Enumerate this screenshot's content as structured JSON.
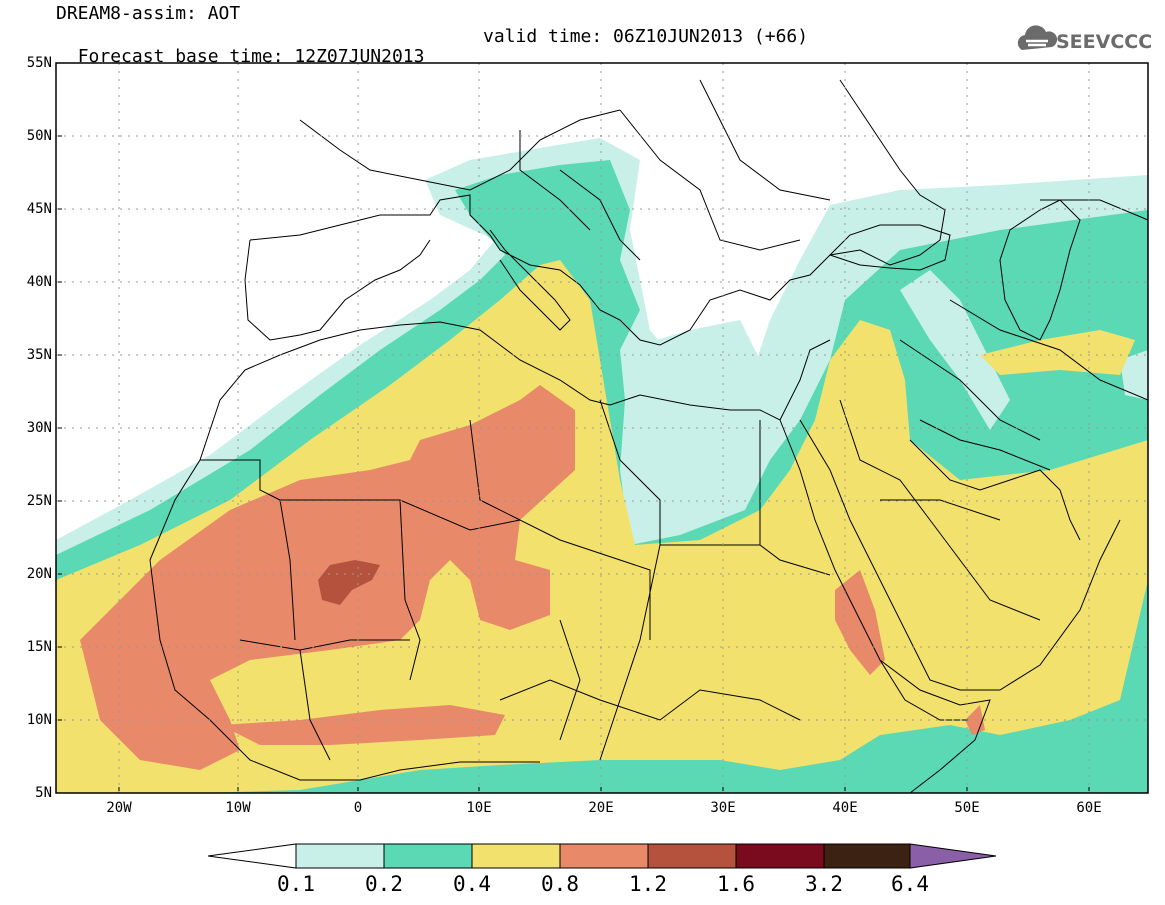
{
  "header": {
    "line1": "DREAM8-assim: AOT",
    "line2a": "Forecast base time: 12Z07JUN2013",
    "line2b": "valid time: 06Z10JUN2013 (+66)"
  },
  "logo": {
    "text": "SEEVCCC",
    "icon": "cloud-icon",
    "color": "#6b6b6b"
  },
  "map": {
    "lat_labels": [
      "55N",
      "50N",
      "45N",
      "40N",
      "35N",
      "30N",
      "25N",
      "20N",
      "15N",
      "10N",
      "5N"
    ],
    "lon_labels": [
      "20W",
      "10W",
      "0",
      "10E",
      "20E",
      "30E",
      "40E",
      "50E",
      "60E"
    ]
  },
  "colorbar": {
    "labels": [
      "0.1",
      "0.2",
      "0.4",
      "0.8",
      "1.2",
      "1.6",
      "3.2",
      "6.4"
    ],
    "colors": [
      "#ffffff",
      "#c8f0e8",
      "#5ad9b4",
      "#f3e16e",
      "#e8896a",
      "#b5523e",
      "#7a0a1e",
      "#3c2212",
      "#8a5fa8"
    ]
  },
  "colors": {
    "c1": "#c8f0e8",
    "c2": "#5ad9b4",
    "c3": "#f3e16e",
    "c4": "#e8896a",
    "c5": "#b5523e",
    "boundary": "#000000"
  }
}
